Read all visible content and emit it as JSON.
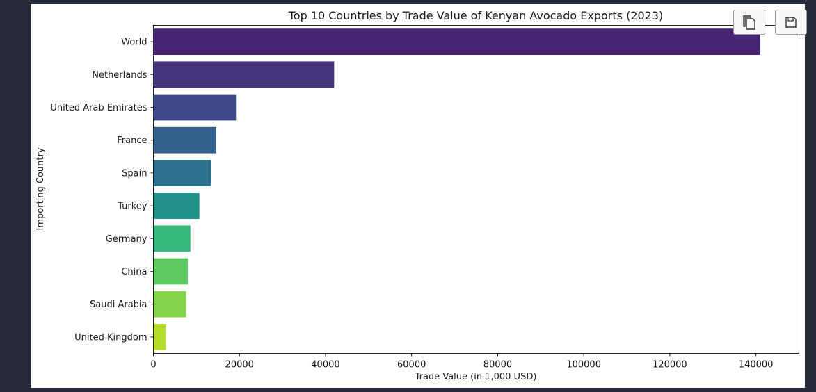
{
  "toolbar": {
    "copy_icon": "copy-icon",
    "save_icon": "floppy-disk-icon"
  },
  "chart_data": {
    "type": "bar",
    "orientation": "horizontal",
    "title": "Top 10 Countries by Trade Value of Kenyan Avocado Exports (2023)",
    "xlabel": "Trade Value (in 1,000 USD)",
    "ylabel": "Importing Country",
    "categories": [
      "World",
      "Netherlands",
      "United Arab Emirates",
      "France",
      "Spain",
      "Turkey",
      "Germany",
      "China",
      "Saudi Arabia",
      "United Kingdom"
    ],
    "values": [
      141000,
      42000,
      19200,
      14600,
      13400,
      10700,
      8600,
      8000,
      7600,
      2900
    ],
    "colors": [
      "#482475",
      "#46337e",
      "#3e4989",
      "#355f8d",
      "#2c728e",
      "#21918c",
      "#35b779",
      "#5ec962",
      "#84d44b",
      "#b5de2b"
    ],
    "xlim": [
      0,
      150000
    ],
    "xticks": [
      0,
      20000,
      40000,
      60000,
      80000,
      100000,
      120000,
      140000
    ],
    "xtick_labels": [
      "0",
      "20000",
      "40000",
      "60000",
      "80000",
      "100000",
      "120000",
      "140000"
    ],
    "grid": false,
    "legend": "none"
  }
}
